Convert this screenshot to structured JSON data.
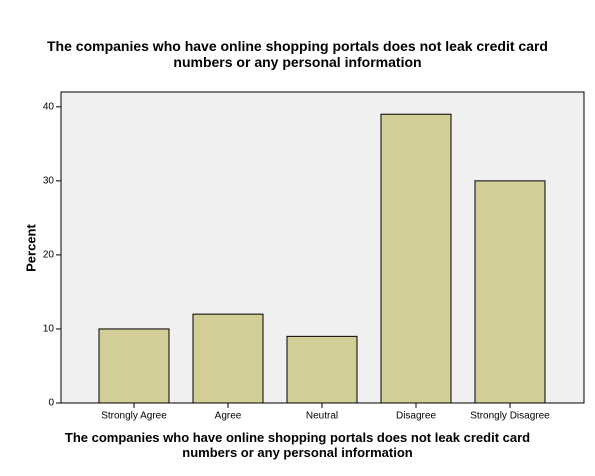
{
  "chart_data": {
    "type": "bar",
    "title": "The companies who have online shopping portals does not leak credit card numbers or any personal information",
    "x_label": "The companies who have online shopping portals does not leak credit card numbers or any personal information",
    "y_label": "Percent",
    "categories": [
      "Strongly Agree",
      "Agree",
      "Neutral",
      "Disagree",
      "Strongly Disagree"
    ],
    "values": [
      10,
      12,
      9,
      39,
      30
    ],
    "color": "#d3ce97",
    "ylim": [
      0,
      42
    ],
    "yticks": [
      0,
      10,
      20,
      30,
      40
    ],
    "grid": false
  }
}
